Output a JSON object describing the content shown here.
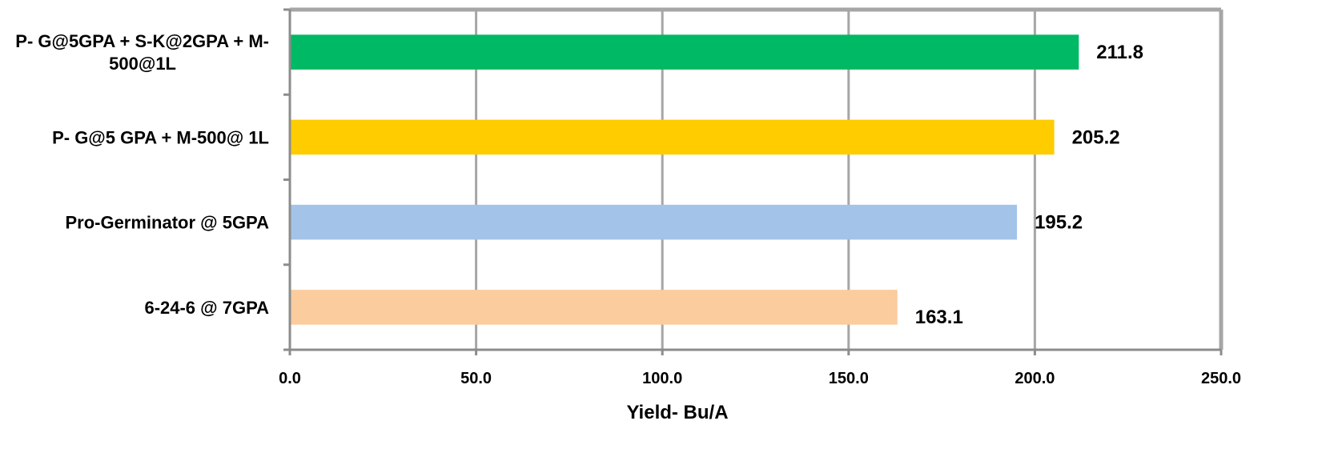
{
  "chart_data": {
    "type": "bar",
    "orientation": "horizontal",
    "categories": [
      "P- G@5GPA + S-K@2GPA + M-500@1L",
      "P- G@5 GPA + M-500@ 1L",
      "Pro-Germinator @ 5GPA",
      "6-24-6 @ 7GPA"
    ],
    "category_lines": [
      [
        "P- G@5GPA + S-K@2GPA + M-",
        "500@1L"
      ],
      [
        "P- G@5 GPA + M-500@ 1L"
      ],
      [
        "Pro-Germinator @ 5GPA"
      ],
      [
        "6-24-6 @ 7GPA"
      ]
    ],
    "values": [
      211.8,
      205.2,
      195.2,
      163.1
    ],
    "data_labels": [
      "211.8",
      "205.2",
      "195.2",
      "163.1"
    ],
    "colors": [
      "#00b964",
      "#ffcc00",
      "#a3c4e8",
      "#facc9e"
    ],
    "title": "",
    "xlabel": "Yield- Bu/A",
    "ylabel": "",
    "xlim": [
      0,
      250
    ],
    "xticks": [
      0,
      50,
      100,
      150,
      200,
      250
    ],
    "xtick_labels": [
      "0.0",
      "50.0",
      "100.0",
      "150.0",
      "200.0",
      "250.0"
    ],
    "grid": "vertical gridlines on",
    "legend": "none"
  }
}
